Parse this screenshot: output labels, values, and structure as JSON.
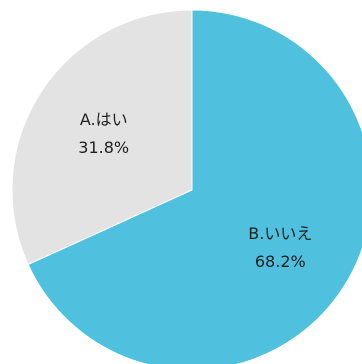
{
  "chart_data": {
    "type": "pie",
    "title": "",
    "slices": [
      {
        "label": "A.はい",
        "value": 31.8,
        "value_label": "31.8%",
        "color": "#e3e3e3"
      },
      {
        "label": "B.いいえ",
        "value": 68.2,
        "value_label": "68.2%",
        "color": "#4fc1de"
      }
    ],
    "start_angle_deg": 0,
    "direction": "counterclockwise",
    "legend": "none"
  }
}
